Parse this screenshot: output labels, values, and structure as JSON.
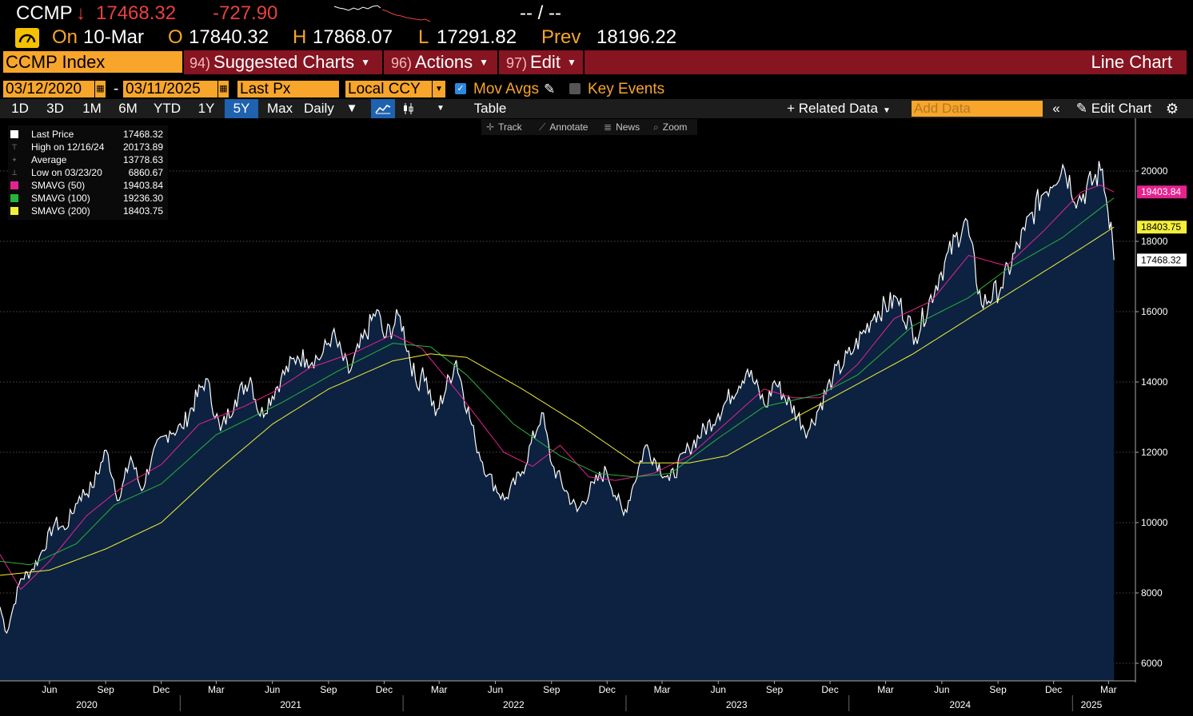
{
  "quote": {
    "ticker": "CCMP",
    "direction_arrow": "↓",
    "last_price": "17468.32",
    "change": "-727.90",
    "time_placeholder": "-- / --",
    "date_label": "On",
    "date": "10-Mar",
    "open_label": "O",
    "open": "17840.32",
    "high_label": "H",
    "high": "17868.07",
    "low_label": "L",
    "low": "17291.82",
    "prev_label": "Prev",
    "prev": "18196.22"
  },
  "toolbar": {
    "security": "CCMP Index",
    "menus": [
      {
        "num": "94)",
        "label": "Suggested Charts"
      },
      {
        "num": "96)",
        "label": "Actions"
      },
      {
        "num": "97)",
        "label": "Edit"
      }
    ],
    "chart_type": "Line Chart"
  },
  "options": {
    "start_date": "03/12/2020",
    "date_separator": "-",
    "end_date": "03/11/2025",
    "field": "Last Px",
    "currency": "Local CCY",
    "mov_avgs_label": "Mov Avgs",
    "mov_avgs_checked": true,
    "key_events_label": "Key Events",
    "key_events_checked": false
  },
  "periods": {
    "items": [
      "1D",
      "3D",
      "1M",
      "6M",
      "YTD",
      "1Y",
      "5Y",
      "Max"
    ],
    "selected": "5Y",
    "frequency": "Daily",
    "table_label": "Table",
    "related_data_label": "Related Data",
    "add_data_placeholder": "Add Data",
    "edit_chart_label": "Edit Chart"
  },
  "chart_tools": [
    "Track",
    "Annotate",
    "News",
    "Zoom"
  ],
  "legend": [
    {
      "name": "Last Price",
      "value": "17468.32",
      "color": "#ffffff",
      "symbol": "box"
    },
    {
      "name": "High on 12/16/24",
      "value": "20173.89",
      "color": "#9a9a9a",
      "symbol": "T"
    },
    {
      "name": "Average",
      "value": "13778.63",
      "color": "#9a9a9a",
      "symbol": "+"
    },
    {
      "name": "Low on 03/23/20",
      "value": "6860.67",
      "color": "#9a9a9a",
      "symbol": "L"
    },
    {
      "name": "SMAVG (50)",
      "value": "19403.84",
      "color": "#e6228f",
      "symbol": "box"
    },
    {
      "name": "SMAVG (100)",
      "value": "19236.30",
      "color": "#27b33c",
      "symbol": "box"
    },
    {
      "name": "SMAVG (200)",
      "value": "18403.75",
      "color": "#f3ef3a",
      "symbol": "box"
    }
  ],
  "chart_data": {
    "type": "line",
    "ylim": [
      5500,
      21500
    ],
    "y_ticks": [
      6000,
      8000,
      10000,
      12000,
      14000,
      16000,
      18000,
      20000
    ],
    "x_month_labels": [
      "Jun",
      "Sep",
      "Dec",
      "Mar",
      "Jun",
      "Sep",
      "Dec",
      "Mar",
      "Jun",
      "Sep",
      "Dec",
      "Mar",
      "Jun",
      "Sep",
      "Dec",
      "Mar",
      "Jun",
      "Sep",
      "Dec",
      "Mar"
    ],
    "x_month_dates": [
      "2020-06-01",
      "2020-09-01",
      "2020-12-01",
      "2021-03-01",
      "2021-06-01",
      "2021-09-01",
      "2021-12-01",
      "2022-03-01",
      "2022-06-01",
      "2022-09-01",
      "2022-12-01",
      "2023-03-01",
      "2023-06-01",
      "2023-09-01",
      "2023-12-01",
      "2024-03-01",
      "2024-06-01",
      "2024-09-01",
      "2024-12-01",
      "2025-03-01"
    ],
    "x_years": [
      "2020",
      "2021",
      "2022",
      "2023",
      "2024",
      "2025"
    ],
    "x_year_dates": [
      "2020-08-01",
      "2021-07-01",
      "2022-07-01",
      "2023-07-01",
      "2024-07-01",
      "2025-02-01"
    ],
    "x_year_boundaries": [
      "2021-01-01",
      "2022-01-01",
      "2023-01-01",
      "2024-01-01",
      "2025-01-01"
    ],
    "x_range": [
      "2020-03-12",
      "2025-03-11"
    ],
    "right_labels": [
      {
        "value": "19403.84",
        "color": "#e6228f",
        "text_color": "#ffffff"
      },
      {
        "value": "18403.75",
        "color": "#f3ef3a",
        "text_color": "#000000"
      },
      {
        "value": "17468.32",
        "color": "#ffffff",
        "text_color": "#000000"
      }
    ],
    "series": [
      {
        "name": "Last Price",
        "color": "#ffffff",
        "points": [
          [
            "2020-03-12",
            7600
          ],
          [
            "2020-03-23",
            6860.67
          ],
          [
            "2020-04-01",
            7480
          ],
          [
            "2020-04-15",
            8400
          ],
          [
            "2020-05-01",
            8600
          ],
          [
            "2020-05-15",
            9000
          ],
          [
            "2020-06-10",
            10000
          ],
          [
            "2020-06-26",
            9800
          ],
          [
            "2020-07-20",
            10750
          ],
          [
            "2020-08-10",
            11000
          ],
          [
            "2020-09-02",
            12056
          ],
          [
            "2020-09-23",
            10633
          ],
          [
            "2020-10-12",
            11876
          ],
          [
            "2020-10-30",
            10911
          ],
          [
            "2020-11-16",
            11900
          ],
          [
            "2020-12-15",
            12600
          ],
          [
            "2021-01-04",
            12700
          ],
          [
            "2021-02-12",
            14095
          ],
          [
            "2021-03-08",
            12609
          ],
          [
            "2021-04-01",
            13500
          ],
          [
            "2021-04-26",
            14138
          ],
          [
            "2021-05-12",
            13031
          ],
          [
            "2021-06-15",
            14100
          ],
          [
            "2021-07-12",
            14733
          ],
          [
            "2021-07-27",
            14660
          ],
          [
            "2021-08-20",
            14714
          ],
          [
            "2021-09-07",
            15374
          ],
          [
            "2021-10-04",
            14255
          ],
          [
            "2021-11-19",
            16057
          ],
          [
            "2021-12-01",
            15254
          ],
          [
            "2021-12-27",
            15871
          ],
          [
            "2022-01-24",
            13855
          ],
          [
            "2022-02-02",
            14417
          ],
          [
            "2022-02-23",
            13037
          ],
          [
            "2022-03-29",
            14619
          ],
          [
            "2022-04-29",
            12335
          ],
          [
            "2022-05-20",
            11354
          ],
          [
            "2022-06-16",
            10646
          ],
          [
            "2022-07-15",
            11452
          ],
          [
            "2022-08-16",
            13128
          ],
          [
            "2022-09-02",
            11631
          ],
          [
            "2022-10-13",
            10321
          ],
          [
            "2022-11-10",
            11114
          ],
          [
            "2022-11-30",
            11468
          ],
          [
            "2022-12-28",
            10213
          ],
          [
            "2023-01-13",
            11079
          ],
          [
            "2023-02-02",
            12200
          ],
          [
            "2023-03-13",
            11189
          ],
          [
            "2023-04-14",
            12123
          ],
          [
            "2023-06-01",
            13100
          ],
          [
            "2023-07-19",
            14358
          ],
          [
            "2023-08-18",
            13290
          ],
          [
            "2023-09-01",
            14031
          ],
          [
            "2023-10-26",
            12596
          ],
          [
            "2023-12-06",
            14146
          ],
          [
            "2024-01-10",
            14969
          ],
          [
            "2024-02-12",
            15942
          ],
          [
            "2024-03-20",
            16369
          ],
          [
            "2024-04-19",
            15282
          ],
          [
            "2024-05-28",
            17019
          ],
          [
            "2024-07-10",
            18647
          ],
          [
            "2024-08-05",
            16200
          ],
          [
            "2024-09-06",
            16690
          ],
          [
            "2024-10-15",
            18315
          ],
          [
            "2024-11-11",
            19298
          ],
          [
            "2024-12-16",
            20173.89
          ],
          [
            "2025-01-10",
            19162
          ],
          [
            "2025-02-19",
            20056
          ],
          [
            "2025-02-28",
            18847
          ],
          [
            "2025-03-05",
            18552
          ],
          [
            "2025-03-07",
            18196
          ],
          [
            "2025-03-10",
            17468.32
          ]
        ]
      },
      {
        "name": "SMAVG (50)",
        "color": "#e6228f",
        "points": [
          [
            "2020-03-12",
            9100
          ],
          [
            "2020-04-15",
            8100
          ],
          [
            "2020-06-01",
            8900
          ],
          [
            "2020-08-01",
            10200
          ],
          [
            "2020-10-01",
            11050
          ],
          [
            "2020-12-01",
            11650
          ],
          [
            "2021-02-01",
            12800
          ],
          [
            "2021-04-15",
            13300
          ],
          [
            "2021-06-01",
            13700
          ],
          [
            "2021-08-01",
            14400
          ],
          [
            "2021-10-15",
            14850
          ],
          [
            "2021-12-15",
            15350
          ],
          [
            "2022-02-01",
            14950
          ],
          [
            "2022-04-01",
            13700
          ],
          [
            "2022-06-15",
            12000
          ],
          [
            "2022-08-01",
            11600
          ],
          [
            "2022-09-15",
            12200
          ],
          [
            "2022-11-01",
            11300
          ],
          [
            "2022-12-15",
            11200
          ],
          [
            "2023-02-15",
            11400
          ],
          [
            "2023-04-15",
            11900
          ],
          [
            "2023-07-01",
            13100
          ],
          [
            "2023-08-15",
            13800
          ],
          [
            "2023-10-01",
            13550
          ],
          [
            "2023-11-15",
            13550
          ],
          [
            "2024-01-15",
            14500
          ],
          [
            "2024-03-15",
            15800
          ],
          [
            "2024-05-15",
            16300
          ],
          [
            "2024-07-15",
            17600
          ],
          [
            "2024-09-15",
            17300
          ],
          [
            "2024-11-15",
            18300
          ],
          [
            "2025-01-15",
            19400
          ],
          [
            "2025-02-15",
            19600
          ],
          [
            "2025-03-10",
            19403.84
          ]
        ]
      },
      {
        "name": "SMAVG (100)",
        "color": "#27b33c",
        "points": [
          [
            "2020-03-12",
            8900
          ],
          [
            "2020-05-01",
            8800
          ],
          [
            "2020-07-15",
            9400
          ],
          [
            "2020-09-15",
            10500
          ],
          [
            "2020-12-01",
            11100
          ],
          [
            "2021-03-01",
            12500
          ],
          [
            "2021-06-15",
            13400
          ],
          [
            "2021-09-15",
            14300
          ],
          [
            "2021-12-15",
            15100
          ],
          [
            "2022-02-15",
            15000
          ],
          [
            "2022-04-15",
            14200
          ],
          [
            "2022-07-01",
            12800
          ],
          [
            "2022-09-15",
            11900
          ],
          [
            "2022-11-15",
            11400
          ],
          [
            "2023-01-15",
            11300
          ],
          [
            "2023-03-15",
            11400
          ],
          [
            "2023-06-01",
            12400
          ],
          [
            "2023-08-15",
            13300
          ],
          [
            "2023-11-15",
            13650
          ],
          [
            "2024-01-15",
            14200
          ],
          [
            "2024-04-15",
            15600
          ],
          [
            "2024-07-15",
            16400
          ],
          [
            "2024-09-15",
            17200
          ],
          [
            "2024-12-15",
            18100
          ],
          [
            "2025-03-10",
            19236.3
          ]
        ]
      },
      {
        "name": "SMAVG (200)",
        "color": "#f3ef3a",
        "points": [
          [
            "2020-03-12",
            8500
          ],
          [
            "2020-06-01",
            8650
          ],
          [
            "2020-09-01",
            9250
          ],
          [
            "2020-12-01",
            10000
          ],
          [
            "2021-03-01",
            11450
          ],
          [
            "2021-06-01",
            12800
          ],
          [
            "2021-09-01",
            13800
          ],
          [
            "2021-12-15",
            14600
          ],
          [
            "2022-02-15",
            14800
          ],
          [
            "2022-04-15",
            14700
          ],
          [
            "2022-07-15",
            13800
          ],
          [
            "2022-10-15",
            12800
          ],
          [
            "2023-01-15",
            11700
          ],
          [
            "2023-04-15",
            11700
          ],
          [
            "2023-06-15",
            11900
          ],
          [
            "2023-09-15",
            12800
          ],
          [
            "2023-12-15",
            13650
          ],
          [
            "2024-04-15",
            14800
          ],
          [
            "2024-07-15",
            15800
          ],
          [
            "2024-10-15",
            16800
          ],
          [
            "2025-01-15",
            17800
          ],
          [
            "2025-03-10",
            18403.75
          ]
        ]
      }
    ]
  }
}
